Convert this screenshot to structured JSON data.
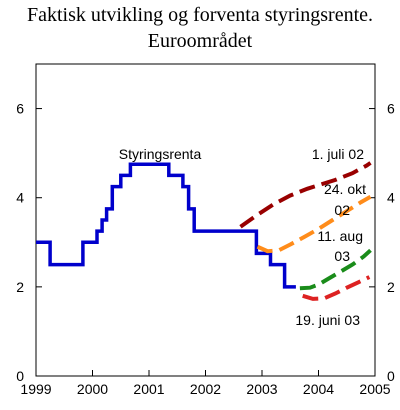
{
  "chart_data": {
    "type": "line",
    "title": "Faktisk utvikling og forventa styringsrente.",
    "subtitle": "Euroområdet",
    "xlim": [
      1999,
      2005
    ],
    "ylim": [
      0,
      7
    ],
    "x_ticks": [
      "1999",
      "2000",
      "2001",
      "2002",
      "2003",
      "2004",
      "2005"
    ],
    "y_ticks_left": [
      "0",
      "2",
      "4",
      "6"
    ],
    "y_ticks_right": [
      "0",
      "2",
      "4",
      "6"
    ],
    "grid": false,
    "series": [
      {
        "name": "Styringsrenta",
        "color": "#0000cc",
        "style": "step",
        "points": [
          [
            1999.0,
            3.0
          ],
          [
            1999.25,
            3.0
          ],
          [
            1999.25,
            2.5
          ],
          [
            1999.83,
            2.5
          ],
          [
            1999.83,
            3.0
          ],
          [
            2000.08,
            3.0
          ],
          [
            2000.08,
            3.25
          ],
          [
            2000.17,
            3.25
          ],
          [
            2000.17,
            3.5
          ],
          [
            2000.25,
            3.5
          ],
          [
            2000.25,
            3.75
          ],
          [
            2000.35,
            3.75
          ],
          [
            2000.35,
            4.25
          ],
          [
            2000.5,
            4.25
          ],
          [
            2000.5,
            4.5
          ],
          [
            2000.67,
            4.5
          ],
          [
            2000.67,
            4.75
          ],
          [
            2001.35,
            4.75
          ],
          [
            2001.35,
            4.5
          ],
          [
            2001.6,
            4.5
          ],
          [
            2001.6,
            4.25
          ],
          [
            2001.7,
            4.25
          ],
          [
            2001.7,
            3.75
          ],
          [
            2001.8,
            3.75
          ],
          [
            2001.8,
            3.25
          ],
          [
            2002.9,
            3.25
          ],
          [
            2002.9,
            2.75
          ],
          [
            2003.15,
            2.75
          ],
          [
            2003.15,
            2.5
          ],
          [
            2003.4,
            2.5
          ],
          [
            2003.4,
            2.0
          ],
          [
            2003.6,
            2.0
          ]
        ]
      },
      {
        "name": "1. juli 02",
        "color": "#990000",
        "style": "dashed",
        "points": [
          [
            2002.62,
            3.35
          ],
          [
            2002.9,
            3.6
          ],
          [
            2003.2,
            3.85
          ],
          [
            2003.5,
            4.05
          ],
          [
            2003.8,
            4.2
          ],
          [
            2004.0,
            4.28
          ],
          [
            2004.3,
            4.4
          ],
          [
            2004.6,
            4.55
          ],
          [
            2004.85,
            4.72
          ],
          [
            2004.92,
            4.78
          ]
        ]
      },
      {
        "name": "24. okt 02",
        "color": "#ff8c1a",
        "style": "dashed",
        "points": [
          [
            2002.92,
            2.9
          ],
          [
            2003.1,
            2.8
          ],
          [
            2003.3,
            2.82
          ],
          [
            2003.5,
            2.95
          ],
          [
            2003.75,
            3.12
          ],
          [
            2004.0,
            3.3
          ],
          [
            2004.25,
            3.5
          ],
          [
            2004.5,
            3.7
          ],
          [
            2004.75,
            3.9
          ],
          [
            2004.92,
            4.02
          ]
        ]
      },
      {
        "name": "11. aug 03",
        "color": "#1a8c1a",
        "style": "dashed",
        "points": [
          [
            2003.67,
            1.97
          ],
          [
            2003.85,
            1.98
          ],
          [
            2004.0,
            2.05
          ],
          [
            2004.2,
            2.2
          ],
          [
            2004.4,
            2.35
          ],
          [
            2004.6,
            2.5
          ],
          [
            2004.8,
            2.68
          ],
          [
            2004.92,
            2.82
          ]
        ]
      },
      {
        "name": "19. juni 03",
        "color": "#dd2222",
        "style": "dashed",
        "points": [
          [
            2003.72,
            1.8
          ],
          [
            2003.9,
            1.73
          ],
          [
            2004.1,
            1.74
          ],
          [
            2004.3,
            1.85
          ],
          [
            2004.5,
            1.98
          ],
          [
            2004.7,
            2.1
          ],
          [
            2004.9,
            2.22
          ]
        ]
      }
    ],
    "annotations": [
      {
        "text": "Styringsrenta",
        "series": "Styringsrenta"
      },
      {
        "text": "1. juli 02",
        "series": "1. juli 02"
      },
      {
        "text": "24. okt",
        "series": "24. okt 02"
      },
      {
        "text": "02",
        "series": "24. okt 02"
      },
      {
        "text": "11. aug",
        "series": "11. aug 03"
      },
      {
        "text": "03",
        "series": "11. aug 03"
      },
      {
        "text": "19. juni 03",
        "series": "19. juni 03"
      }
    ]
  }
}
